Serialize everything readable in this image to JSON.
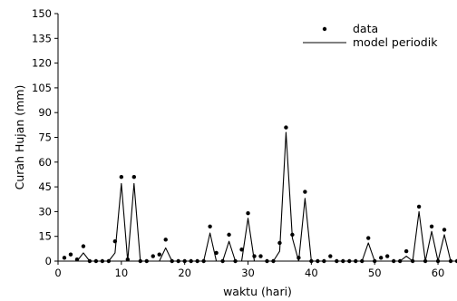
{
  "chart_data": {
    "type": "line",
    "title": "",
    "xlabel": "waktu (hari)",
    "ylabel": "Curah Hujan (mm)",
    "xlim": [
      0,
      63
    ],
    "ylim": [
      0,
      150
    ],
    "xticks": [
      0,
      10,
      20,
      30,
      40,
      50,
      60
    ],
    "yticks": [
      0,
      15,
      30,
      45,
      60,
      75,
      90,
      105,
      120,
      135,
      150
    ],
    "legend_position": "top-right",
    "grid": false,
    "x": [
      1,
      2,
      3,
      4,
      5,
      6,
      7,
      8,
      9,
      10,
      11,
      12,
      13,
      14,
      15,
      16,
      17,
      18,
      19,
      20,
      21,
      22,
      23,
      24,
      25,
      26,
      27,
      28,
      29,
      30,
      31,
      32,
      33,
      34,
      35,
      36,
      37,
      38,
      39,
      40,
      41,
      42,
      43,
      44,
      45,
      46,
      47,
      48,
      49,
      50,
      51,
      52,
      53,
      54,
      55,
      56,
      57,
      58,
      59,
      60,
      61,
      62,
      63
    ],
    "series": [
      {
        "name": "data",
        "style": "points",
        "values": [
          2,
          4,
          1,
          9,
          0,
          0,
          0,
          0,
          12,
          51,
          1,
          51,
          0,
          0,
          3,
          4,
          13,
          0,
          0,
          0,
          0,
          0,
          0,
          21,
          5,
          0,
          16,
          0,
          7,
          29,
          3,
          3,
          0,
          0,
          11,
          81,
          16,
          2,
          42,
          0,
          0,
          0,
          3,
          0,
          0,
          0,
          0,
          0,
          14,
          0,
          2,
          3,
          0,
          0,
          6,
          0,
          33,
          0,
          21,
          0,
          19,
          0,
          0
        ]
      },
      {
        "name": "model periodik",
        "style": "line",
        "values": [
          0,
          0,
          0,
          5,
          0,
          0,
          0,
          0,
          5,
          47,
          0,
          47,
          0,
          0,
          0,
          0,
          8,
          0,
          0,
          0,
          0,
          0,
          0,
          17,
          0,
          0,
          12,
          0,
          0,
          26,
          0,
          0,
          0,
          0,
          6,
          78,
          14,
          0,
          38,
          0,
          0,
          0,
          0,
          0,
          0,
          0,
          0,
          0,
          11,
          0,
          0,
          0,
          0,
          0,
          3,
          0,
          30,
          0,
          18,
          0,
          16,
          0,
          0
        ]
      }
    ]
  }
}
